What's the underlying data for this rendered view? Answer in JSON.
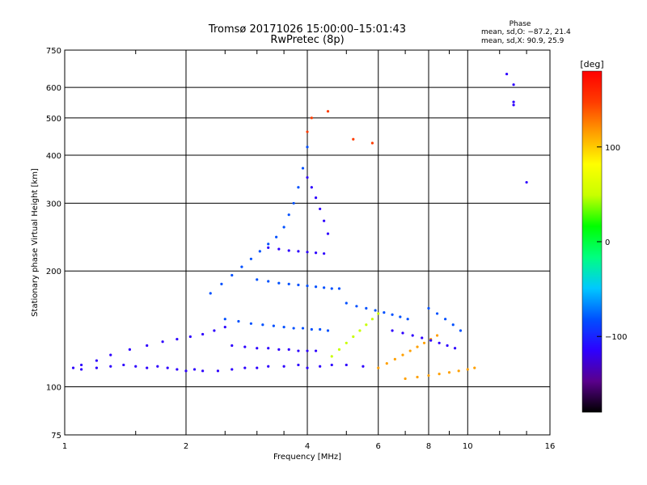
{
  "chart_data": {
    "type": "scatter",
    "title": "Tromsø 20171026 15:00:00–15:01:43",
    "subtitle": "RwPretec (8p)",
    "xlabel": "Frequency [MHz]",
    "ylabel": "Stationary phase Virtual Height [km]",
    "xscale": "log",
    "yscale": "log",
    "xlim": [
      1,
      16
    ],
    "ylim": [
      75,
      750
    ],
    "xticks": [
      1,
      2,
      4,
      6,
      8,
      10,
      16
    ],
    "xtick_labels": [
      "1",
      "2",
      "4",
      "6",
      "8",
      "10",
      "16"
    ],
    "yticks": [
      75,
      100,
      200,
      300,
      400,
      500,
      600,
      750
    ],
    "ytick_labels": [
      "75",
      "100",
      "200",
      "300",
      "400",
      "500",
      "600",
      "750"
    ],
    "grid": true,
    "phase_stats": {
      "title": "Phase",
      "line_o": "mean, sd,O: −87.2, 21.4",
      "line_x": "mean, sd,X:  90.9, 25.9"
    },
    "colorbar": {
      "label": "[deg]",
      "range": [
        -180,
        180
      ],
      "ticks": [
        100,
        0,
        -100
      ],
      "tick_labels": [
        "100",
        "0",
        "−100"
      ],
      "stops": [
        "#000000",
        "#5a008c",
        "#2d00ff",
        "#0050ff",
        "#00c8ff",
        "#00ff80",
        "#00ff00",
        "#c8ff00",
        "#ffff00",
        "#ffa000",
        "#ff3c00",
        "#ff0000"
      ]
    },
    "series": [
      {
        "x": [
          1.05,
          1.1,
          1.2,
          1.3,
          1.4,
          1.5,
          1.6,
          1.7,
          1.8,
          1.9,
          2.0,
          2.1,
          2.2,
          2.4,
          2.6,
          2.8,
          3.0,
          3.2,
          3.5,
          3.8,
          4.0,
          4.3,
          4.6,
          5.0,
          5.5
        ],
        "y": [
          112,
          111,
          112,
          113,
          114,
          113,
          112,
          113,
          112,
          111,
          110,
          111,
          110,
          110,
          111,
          112,
          112,
          113,
          113,
          114,
          112,
          113,
          114,
          114,
          113
        ],
        "phase": -110
      },
      {
        "x": [
          1.1,
          1.2,
          1.3,
          1.45,
          1.6,
          1.75,
          1.9,
          2.05,
          2.2,
          2.35,
          2.5
        ],
        "y": [
          114,
          117,
          121,
          125,
          128,
          131,
          133,
          135,
          137,
          140,
          143
        ],
        "phase": -115
      },
      {
        "x": [
          2.3,
          2.45,
          2.6,
          2.75,
          2.9,
          3.05,
          3.2,
          3.35,
          3.5,
          3.6,
          3.7,
          3.8,
          3.9,
          4.0
        ],
        "y": [
          175,
          185,
          195,
          205,
          215,
          225,
          235,
          245,
          260,
          280,
          300,
          330,
          370,
          420
        ],
        "phase": -95
      },
      {
        "x": [
          2.5,
          2.7,
          2.9,
          3.1,
          3.3,
          3.5,
          3.7,
          3.9,
          4.1,
          4.3,
          4.5
        ],
        "y": [
          150,
          148,
          146,
          145,
          144,
          143,
          142,
          142,
          141,
          141,
          140
        ],
        "phase": -85
      },
      {
        "x": [
          2.6,
          2.8,
          3.0,
          3.2,
          3.4,
          3.6,
          3.8,
          4.0,
          4.2
        ],
        "y": [
          128,
          127,
          126,
          126,
          125,
          125,
          124,
          124,
          124
        ],
        "phase": -100
      },
      {
        "x": [
          3.0,
          3.2,
          3.4,
          3.6,
          3.8,
          4.0,
          4.2,
          4.4,
          4.6,
          4.8
        ],
        "y": [
          190,
          188,
          186,
          185,
          184,
          183,
          182,
          181,
          180,
          180
        ],
        "phase": -90
      },
      {
        "x": [
          3.2,
          3.4,
          3.6,
          3.8,
          4.0,
          4.2,
          4.4
        ],
        "y": [
          230,
          228,
          226,
          225,
          224,
          223,
          222
        ],
        "phase": -105
      },
      {
        "x": [
          4.0,
          4.1,
          4.2,
          4.3,
          4.4,
          4.5
        ],
        "y": [
          350,
          330,
          310,
          290,
          270,
          250
        ],
        "phase": -120
      },
      {
        "x": [
          4.6,
          4.8,
          5.0,
          5.2,
          5.4,
          5.6,
          5.8,
          6.0
        ],
        "y": [
          120,
          125,
          130,
          135,
          140,
          145,
          150,
          155
        ],
        "phase": 40
      },
      {
        "x": [
          5.0,
          5.3,
          5.6,
          5.9,
          6.2,
          6.5,
          6.8,
          7.1
        ],
        "y": [
          165,
          162,
          160,
          158,
          156,
          154,
          152,
          150
        ],
        "phase": -95
      },
      {
        "x": [
          6.0,
          6.3,
          6.6,
          6.9,
          7.2,
          7.5,
          7.8,
          8.1,
          8.4
        ],
        "y": [
          112,
          115,
          118,
          121,
          124,
          127,
          130,
          133,
          136
        ],
        "phase": 110
      },
      {
        "x": [
          6.5,
          6.9,
          7.3,
          7.7,
          8.1,
          8.5,
          8.9,
          9.3
        ],
        "y": [
          140,
          138,
          136,
          134,
          132,
          130,
          128,
          126
        ],
        "phase": -100
      },
      {
        "x": [
          7.0,
          7.5,
          8.0,
          8.5,
          9.0,
          9.5,
          10.0,
          10.4
        ],
        "y": [
          105,
          106,
          107,
          108,
          109,
          110,
          111,
          112
        ],
        "phase": 120
      },
      {
        "x": [
          8.0,
          8.4,
          8.8,
          9.2,
          9.6
        ],
        "y": [
          160,
          155,
          150,
          145,
          140
        ],
        "phase": -80
      },
      {
        "x": [
          13.0,
          13.0,
          13.0,
          12.5,
          14.0
        ],
        "y": [
          610,
          550,
          540,
          650,
          340
        ],
        "phase": -110
      },
      {
        "x": [
          4.0,
          4.1,
          4.5,
          5.2,
          5.8
        ],
        "y": [
          460,
          500,
          520,
          440,
          430
        ],
        "phase": 160
      }
    ]
  },
  "meta_labels": {
    "colorbar_title": "[deg]"
  }
}
